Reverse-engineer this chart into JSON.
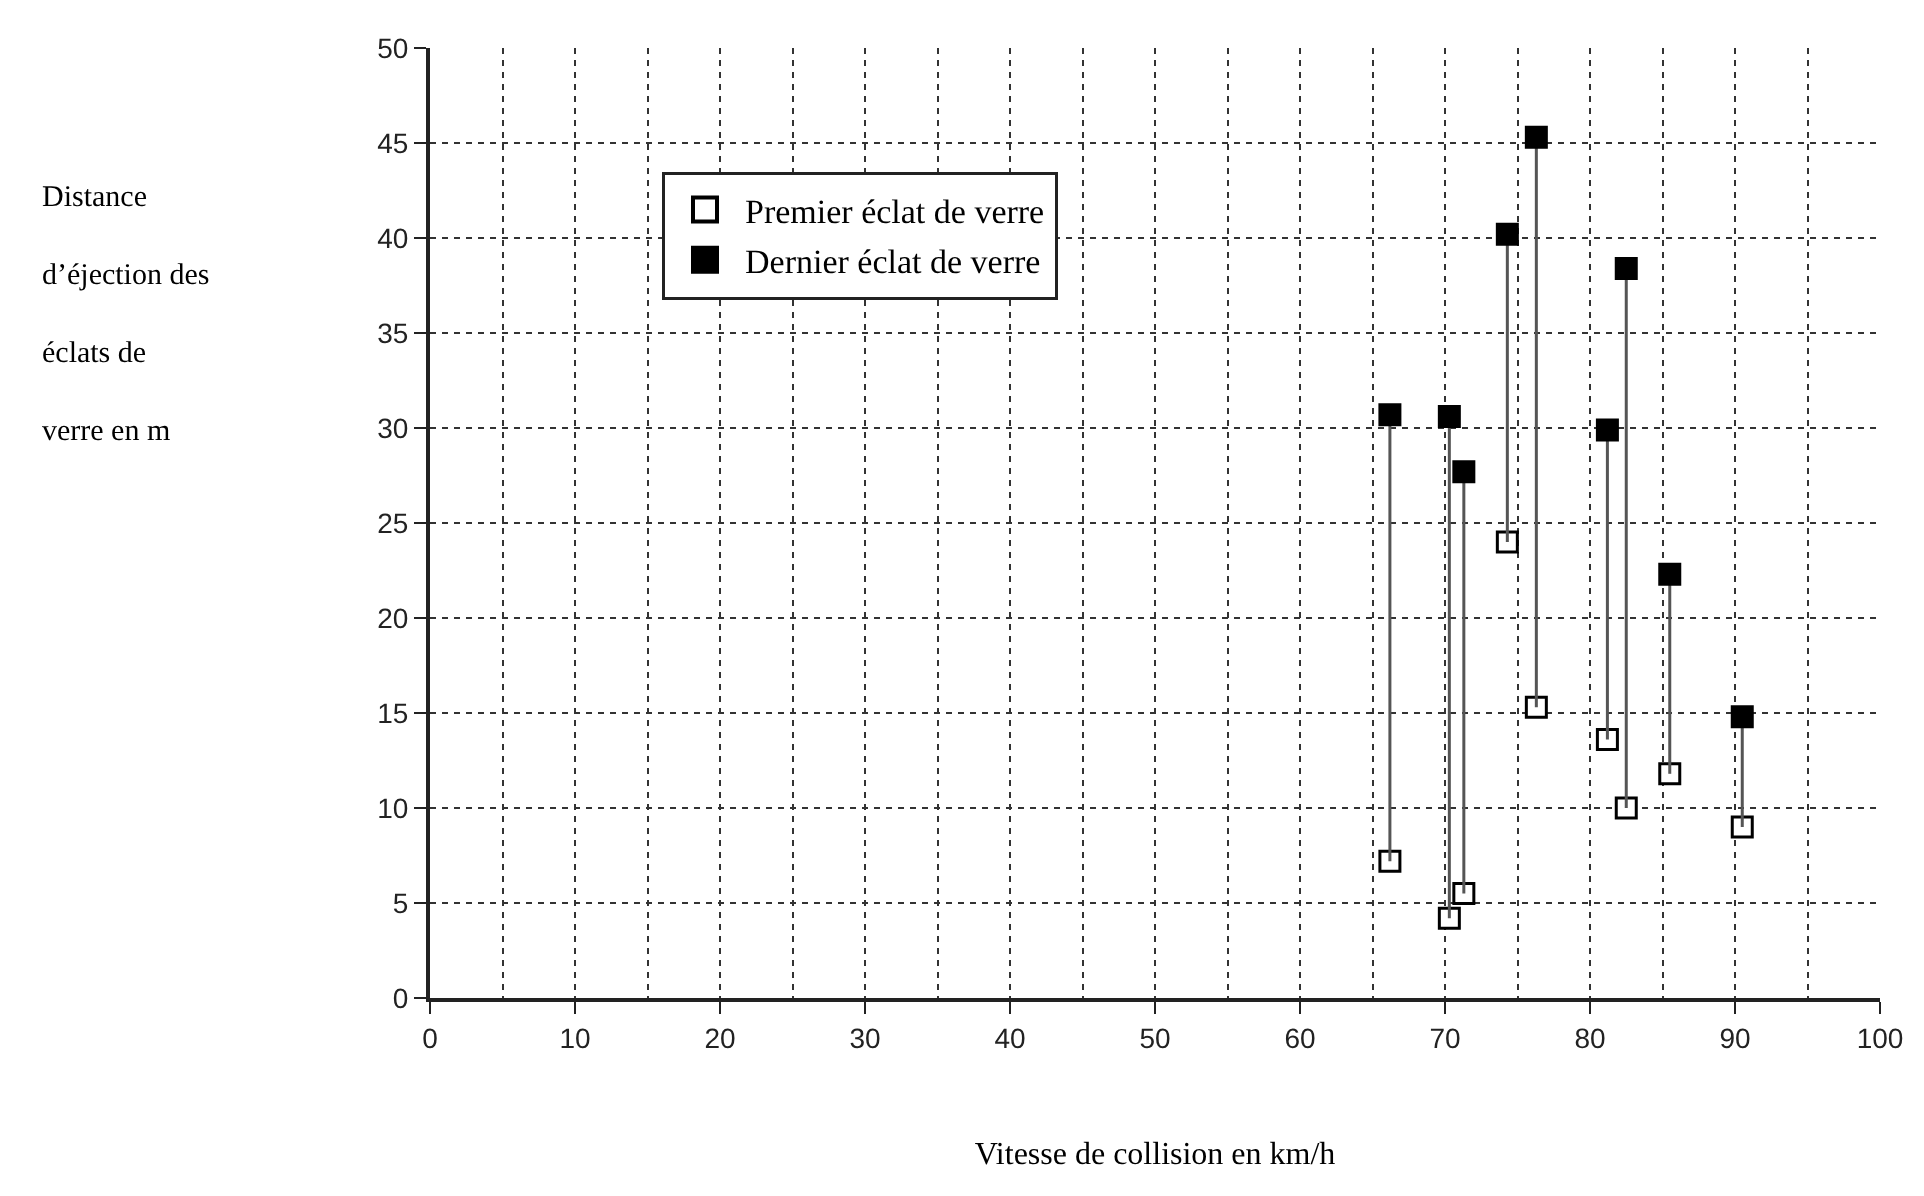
{
  "chart_data": {
    "type": "scatter",
    "xlabel": "Vitesse de collision en km/h",
    "ylabel": "Distance d’éjection des éclats de verre en m",
    "x": [
      66.2,
      70.3,
      71.3,
      74.3,
      76.3,
      81.2,
      82.5,
      85.5,
      90.5
    ],
    "series": [
      {
        "name": "Premier éclat de verre",
        "color": "#ffffff",
        "marker": "square",
        "values": [
          7.2,
          4.2,
          5.5,
          24.0,
          15.3,
          13.6,
          10.0,
          11.8,
          9.0
        ]
      },
      {
        "name": "Dernier éclat de verre",
        "color": "#000000",
        "marker": "square",
        "values": [
          30.7,
          30.6,
          27.7,
          40.2,
          45.3,
          29.9,
          38.4,
          22.3,
          14.8
        ],
        "errors": [
          [
            7.2,
            30.7
          ],
          [
            4.2,
            30.6
          ],
          [
            5.5,
            27.7
          ],
          [
            24.0,
            40.2
          ],
          [
            15.3,
            45.3
          ],
          [
            13.6,
            29.9
          ],
          [
            10.0,
            38.4
          ],
          [
            11.8,
            22.3
          ],
          [
            9.0,
            14.8
          ]
        ]
      }
    ],
    "xlim": [
      0,
      100
    ],
    "xticks": [
      0,
      10,
      20,
      30,
      40,
      50,
      60,
      70,
      80,
      90,
      100
    ],
    "ylim": [
      0,
      50
    ],
    "yticks": [
      0,
      5,
      10,
      15,
      20,
      25,
      30,
      35,
      40,
      45,
      50
    ],
    "grid": true,
    "legend": "top left"
  }
}
